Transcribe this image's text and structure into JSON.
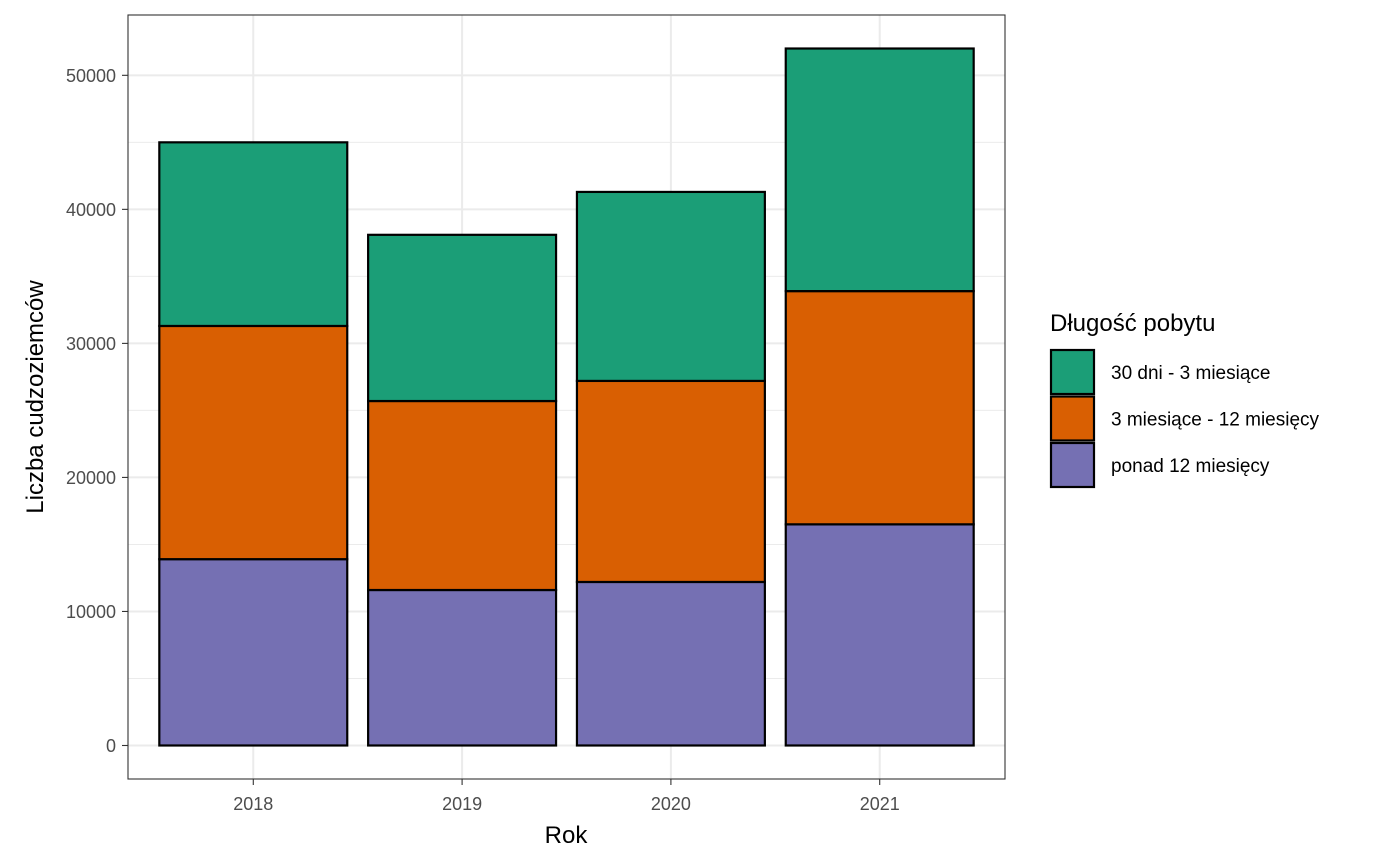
{
  "chart_data": {
    "type": "bar",
    "stacked": true,
    "categories": [
      "2018",
      "2019",
      "2020",
      "2021"
    ],
    "series": [
      {
        "name": "ponad 12 miesięcy",
        "color": "#7570b3",
        "values": [
          13900,
          11600,
          12200,
          16500
        ]
      },
      {
        "name": "3 miesiące - 12 miesięcy",
        "color": "#d95f02",
        "values": [
          17400,
          14100,
          15000,
          17400
        ]
      },
      {
        "name": "30 dni - 3 miesiące",
        "color": "#1b9e77",
        "values": [
          13700,
          12400,
          14100,
          18100
        ]
      }
    ],
    "legend_order": [
      "30 dni - 3 miesiące",
      "3 miesiące - 12 miesięcy",
      "ponad 12 miesięcy"
    ],
    "xlabel": "Rok",
    "ylabel": "Liczba cudzoziemców",
    "legend_title": "Długość pobytu",
    "legend_position": "right",
    "ylim": [
      -2500,
      54500
    ],
    "yticks": [
      0,
      10000,
      20000,
      30000,
      40000,
      50000
    ],
    "ytick_labels": [
      "0",
      "10000",
      "20000",
      "30000",
      "40000",
      "50000"
    ],
    "grid": true,
    "theme": "bw"
  }
}
